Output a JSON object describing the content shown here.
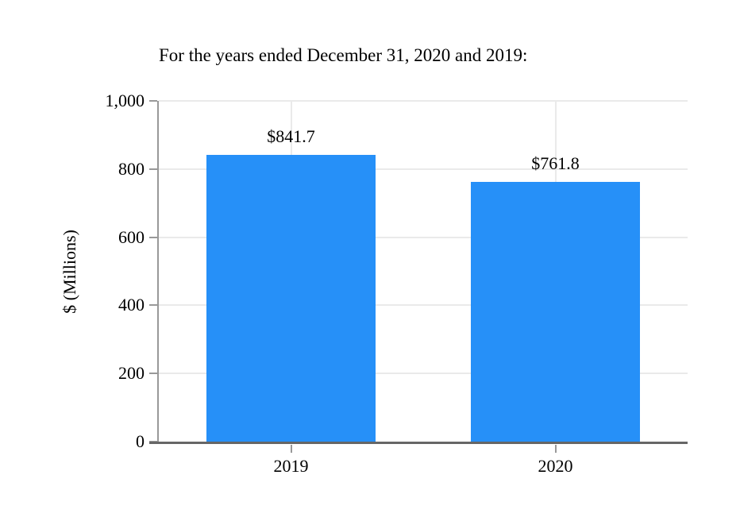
{
  "chart_data": {
    "type": "bar",
    "title": "For the years ended December 31, 2020 and 2019:",
    "categories": [
      "2019",
      "2020"
    ],
    "values": [
      841.7,
      761.8
    ],
    "value_labels": [
      "$841.7",
      "$761.8"
    ],
    "xlabel": "",
    "ylabel": "$ (Millions)",
    "ylim": [
      0,
      1000
    ],
    "yticks": [
      {
        "value": 0,
        "label": "0"
      },
      {
        "value": 200,
        "label": "200"
      },
      {
        "value": 400,
        "label": "400"
      },
      {
        "value": 600,
        "label": "600"
      },
      {
        "value": 800,
        "label": "800"
      },
      {
        "value": 1000,
        "label": "1,000"
      }
    ],
    "grid": "horizontal lines at y ticks plus faint vertical lines at category centers",
    "legend": "none"
  },
  "colors": {
    "bar": "#2690F8",
    "axis_line": "#999999",
    "baseline": "#666666",
    "gridline": "#EAEAEA",
    "text": "#000000",
    "background": "#FFFFFF"
  }
}
